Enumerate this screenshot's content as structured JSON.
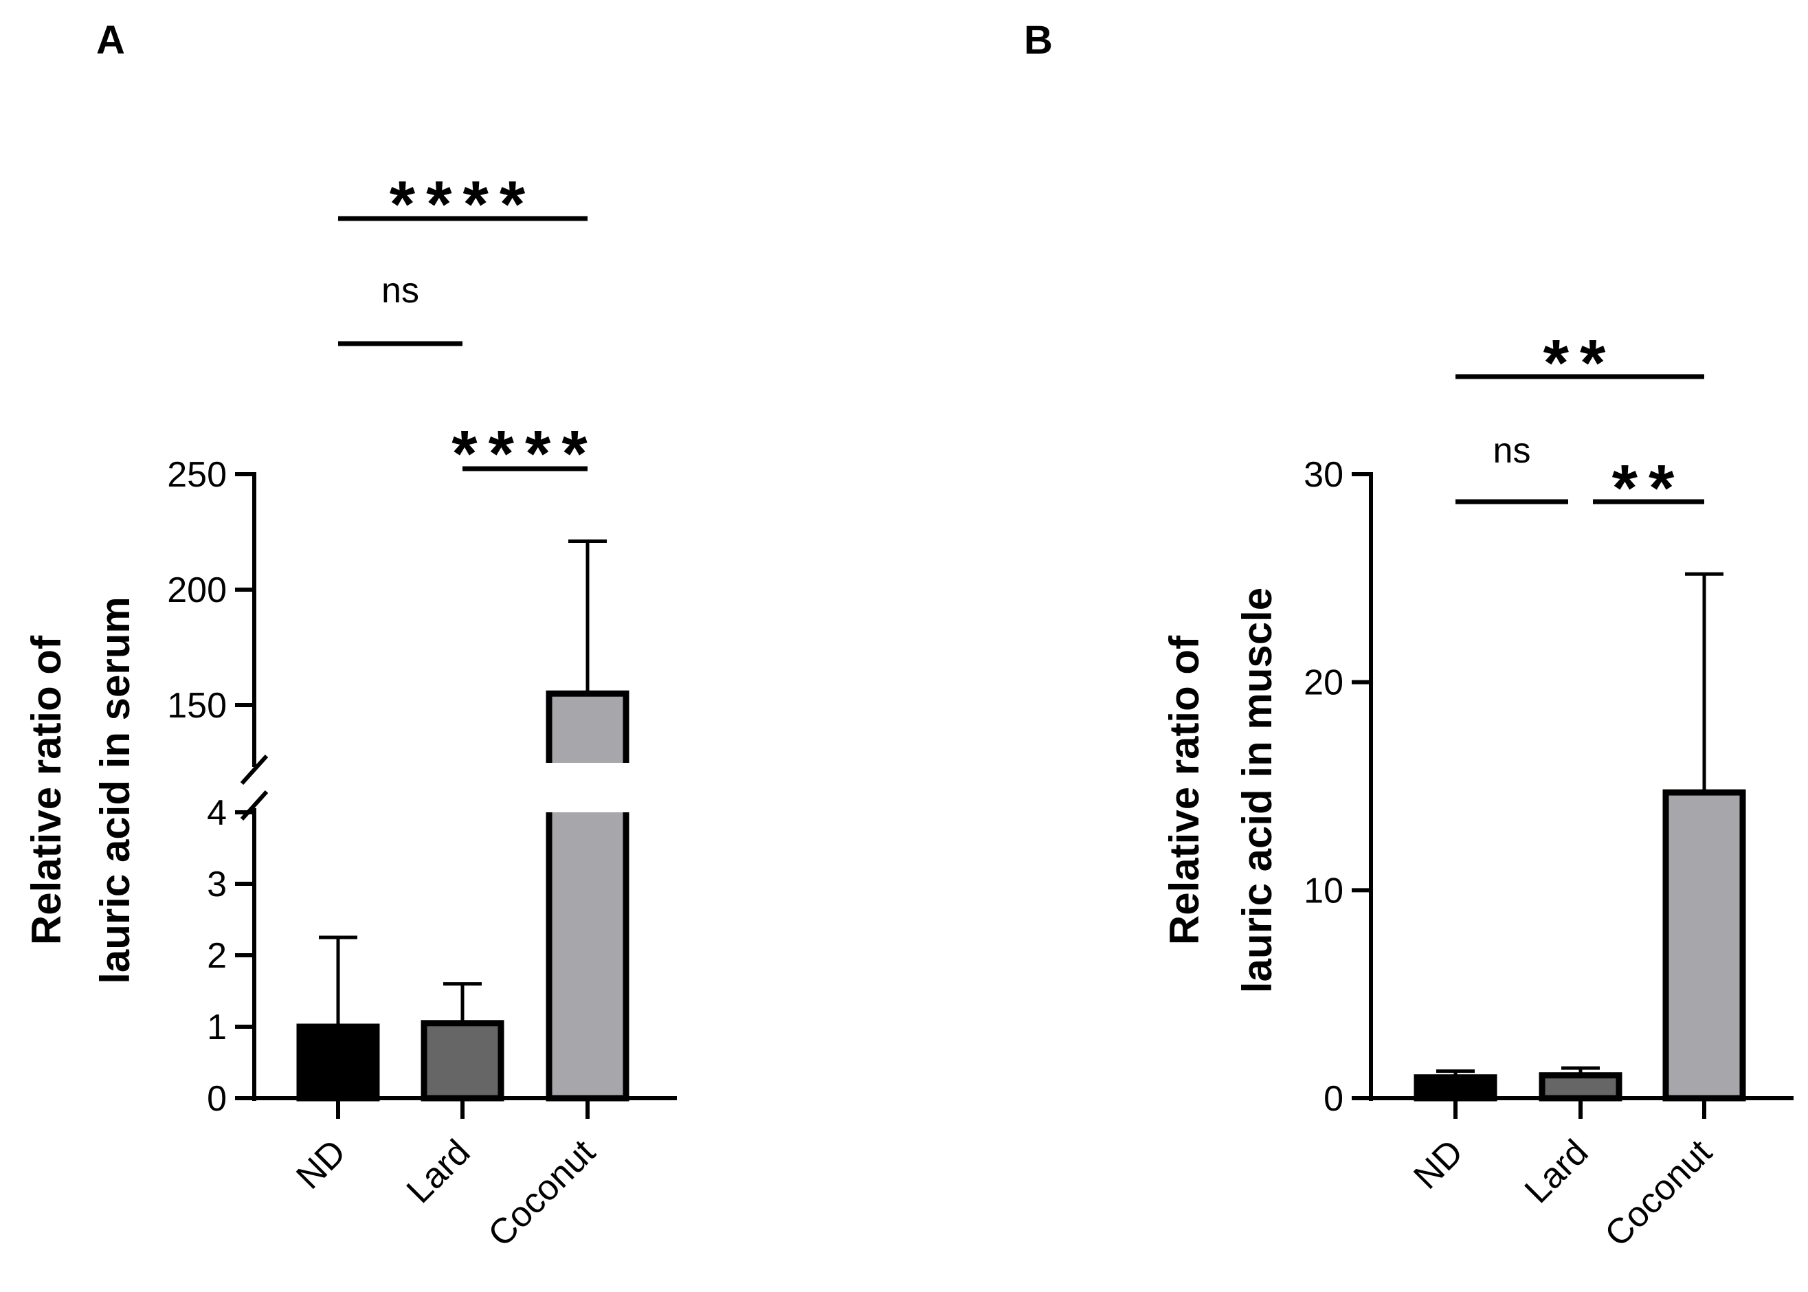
{
  "chart_data": [
    {
      "panel": "A",
      "type": "bar",
      "categories": [
        "ND",
        "Lard",
        "Coconut"
      ],
      "values": [
        1.0,
        1.05,
        155
      ],
      "errors": [
        1.25,
        0.55,
        66
      ],
      "colors": [
        "#000000",
        "#666666",
        "#a6a6ab"
      ],
      "ylabel": [
        "Relative ratio of",
        "lauric acid in serum"
      ],
      "y_axis_break": true,
      "segments": [
        {
          "range": [
            0,
            4
          ],
          "ticks": [
            0,
            1,
            2,
            3,
            4
          ],
          "tick_labels": [
            "0",
            "1",
            "2",
            "3",
            "4"
          ]
        },
        {
          "range": [
            125,
            250
          ],
          "ticks": [
            150,
            200,
            250
          ],
          "tick_labels": [
            "150",
            "200",
            "250"
          ]
        }
      ],
      "significance": [
        {
          "from": 0,
          "to": 2,
          "label": "****"
        },
        {
          "from": 0,
          "to": 1,
          "label": "ns"
        },
        {
          "from": 1,
          "to": 2,
          "label": "****"
        }
      ]
    },
    {
      "panel": "B",
      "type": "bar",
      "categories": [
        "ND",
        "Lard",
        "Coconut"
      ],
      "values": [
        1.0,
        1.1,
        14.7
      ],
      "errors": [
        0.3,
        0.35,
        10.5
      ],
      "colors": [
        "#000000",
        "#666666",
        "#a6a6ab"
      ],
      "ylabel": [
        "Relative ratio of",
        "lauric acid in muscle"
      ],
      "ylim": [
        0,
        30
      ],
      "ticks": [
        0,
        10,
        20,
        30
      ],
      "tick_labels": [
        "0",
        "10",
        "20",
        "30"
      ],
      "significance": [
        {
          "from": 0,
          "to": 2,
          "label": "**"
        },
        {
          "from": 0,
          "to": 1,
          "label": "ns"
        },
        {
          "from": 1,
          "to": 2,
          "label": "**"
        }
      ]
    }
  ]
}
